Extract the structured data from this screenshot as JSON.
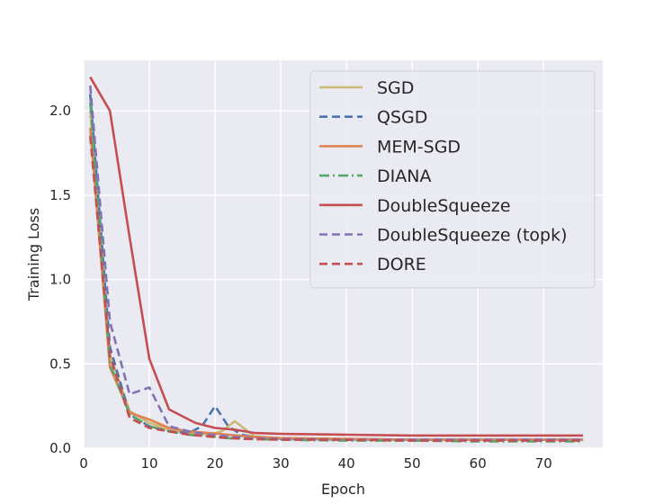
{
  "chart_data": {
    "type": "line",
    "title": "",
    "xlabel": "Epoch",
    "ylabel": "Training Loss",
    "xlim": [
      0,
      79
    ],
    "ylim": [
      0,
      2.3
    ],
    "xticks": [
      0,
      10,
      20,
      30,
      40,
      50,
      60,
      70
    ],
    "yticks": [
      0.0,
      0.5,
      1.0,
      1.5,
      2.0
    ],
    "xtick_labels": [
      "0",
      "10",
      "20",
      "30",
      "40",
      "50",
      "60",
      "70"
    ],
    "ytick_labels": [
      "0.0",
      "0.5",
      "1.0",
      "1.5",
      "2.0"
    ],
    "grid": true,
    "legend_position": "top-right",
    "background_color": "#eaeaf2",
    "series": [
      {
        "name": "SGD",
        "color": "#ccb974",
        "dash": "solid",
        "x": [
          1,
          4,
          7,
          10,
          13,
          16,
          19,
          21,
          23,
          26,
          30,
          40,
          50,
          60,
          70,
          76
        ],
        "y": [
          2.0,
          0.55,
          0.22,
          0.15,
          0.11,
          0.09,
          0.08,
          0.1,
          0.16,
          0.07,
          0.06,
          0.055,
          0.05,
          0.05,
          0.05,
          0.05
        ]
      },
      {
        "name": "QSGD",
        "color": "#4c72b0",
        "dash": "dashed",
        "x": [
          1,
          4,
          7,
          10,
          13,
          16,
          18,
          20,
          22,
          24,
          27,
          30,
          40,
          50,
          60,
          70,
          76
        ],
        "y": [
          2.1,
          0.6,
          0.2,
          0.13,
          0.1,
          0.09,
          0.13,
          0.25,
          0.13,
          0.08,
          0.06,
          0.055,
          0.05,
          0.05,
          0.05,
          0.05,
          0.05
        ]
      },
      {
        "name": "MEM-SGD",
        "color": "#dd8452",
        "dash": "solid",
        "x": [
          1,
          4,
          7,
          10,
          13,
          16,
          19,
          22,
          25,
          30,
          40,
          50,
          60,
          70,
          76
        ],
        "y": [
          1.9,
          0.48,
          0.21,
          0.17,
          0.12,
          0.1,
          0.09,
          0.08,
          0.07,
          0.06,
          0.055,
          0.05,
          0.05,
          0.05,
          0.05
        ]
      },
      {
        "name": "DIANA",
        "color": "#55a868",
        "dash": "dashdot",
        "x": [
          1,
          4,
          7,
          10,
          13,
          16,
          19,
          22,
          25,
          30,
          40,
          50,
          60,
          70,
          76
        ],
        "y": [
          2.05,
          0.5,
          0.2,
          0.13,
          0.1,
          0.08,
          0.07,
          0.06,
          0.055,
          0.05,
          0.045,
          0.045,
          0.04,
          0.04,
          0.04
        ]
      },
      {
        "name": "DoubleSqueeze",
        "color": "#c44e52",
        "dash": "solid",
        "x": [
          1,
          4,
          7,
          10,
          13,
          17,
          20,
          23,
          26,
          30,
          40,
          50,
          60,
          70,
          76
        ],
        "y": [
          2.2,
          2.0,
          1.25,
          0.53,
          0.23,
          0.15,
          0.12,
          0.11,
          0.09,
          0.085,
          0.08,
          0.075,
          0.075,
          0.075,
          0.075
        ]
      },
      {
        "name": "DoubleSqueeze (topk)",
        "color": "#8172b3",
        "dash": "dashed",
        "x": [
          1,
          4,
          7,
          10,
          13,
          16,
          19,
          22,
          25,
          30,
          40,
          50,
          60,
          70,
          76
        ],
        "y": [
          2.15,
          0.75,
          0.32,
          0.36,
          0.13,
          0.1,
          0.08,
          0.07,
          0.06,
          0.055,
          0.05,
          0.05,
          0.05,
          0.05,
          0.05
        ]
      },
      {
        "name": "DORE",
        "color": "#c44e52",
        "dash": "dashed",
        "x": [
          1,
          4,
          7,
          10,
          13,
          16,
          19,
          22,
          25,
          30,
          40,
          50,
          60,
          70,
          76
        ],
        "y": [
          1.85,
          0.55,
          0.18,
          0.12,
          0.1,
          0.08,
          0.07,
          0.06,
          0.055,
          0.05,
          0.05,
          0.045,
          0.045,
          0.045,
          0.045
        ]
      }
    ]
  }
}
